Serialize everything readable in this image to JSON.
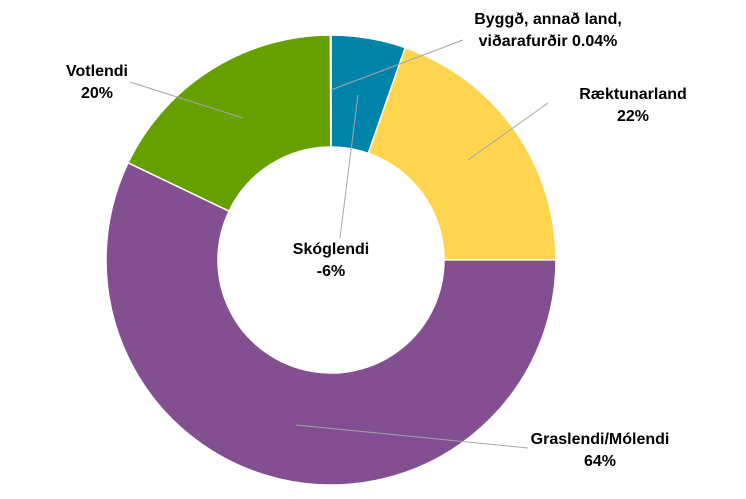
{
  "chart_data": {
    "type": "donut",
    "categories": [
      "Skóglendi",
      "Ræktunarland",
      "Graslendi/Mólendi",
      "Votlendi",
      "Byggð, annað land, viðarafurðir"
    ],
    "values": [
      -6,
      22,
      64,
      20,
      0.04
    ],
    "value_labels": [
      "-6%",
      "22%",
      "64%",
      "20%",
      "0.04%"
    ],
    "colors": [
      "#0083a9",
      "#ffd54f",
      "#834f91",
      "#66a000",
      "#a5a5a5"
    ]
  }
}
